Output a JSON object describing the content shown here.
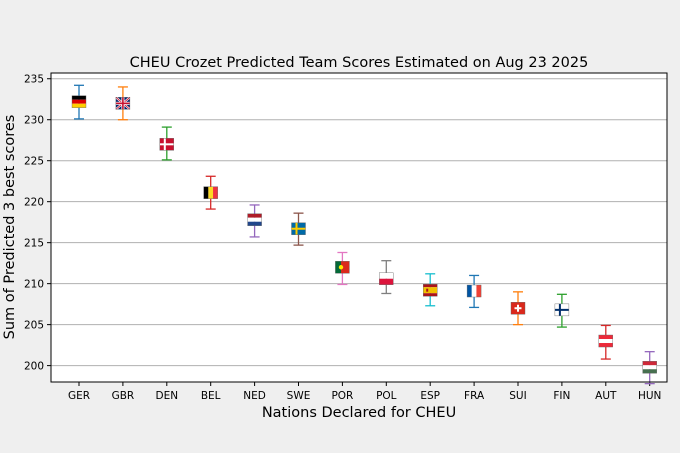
{
  "chart_data": {
    "type": "box",
    "title": "CHEU Crozet Predicted Team Scores Estimated on Aug 23 2025",
    "xlabel": "Nations Declared for CHEU",
    "ylabel": "Sum of Predicted 3 best scores",
    "ylim": [
      198,
      235.7
    ],
    "yticks": [
      200,
      205,
      210,
      215,
      220,
      225,
      230,
      235
    ],
    "grid": "horizontal",
    "categories": [
      "GER",
      "GBR",
      "DEN",
      "BEL",
      "NED",
      "SWE",
      "POR",
      "POL",
      "ESP",
      "FRA",
      "SUI",
      "FIN",
      "AUT",
      "HUN"
    ],
    "series": [
      {
        "category": "GER",
        "min": 230.1,
        "median": 232.2,
        "max": 234.2,
        "color": "#1f77b4",
        "flag": "germany-flag"
      },
      {
        "category": "GBR",
        "min": 230.0,
        "median": 232.0,
        "max": 234.0,
        "color": "#ff7f0e",
        "flag": "united-kingdom-flag"
      },
      {
        "category": "DEN",
        "min": 225.1,
        "median": 227.0,
        "max": 229.1,
        "color": "#2ca02c",
        "flag": "denmark-flag"
      },
      {
        "category": "BEL",
        "min": 219.1,
        "median": 221.1,
        "max": 223.1,
        "color": "#d62728",
        "flag": "belgium-flag"
      },
      {
        "category": "NED",
        "min": 215.7,
        "median": 217.8,
        "max": 219.6,
        "color": "#9467bd",
        "flag": "netherlands-flag"
      },
      {
        "category": "SWE",
        "min": 214.7,
        "median": 216.7,
        "max": 218.6,
        "color": "#8c564b",
        "flag": "sweden-flag"
      },
      {
        "category": "POR",
        "min": 209.9,
        "median": 212.0,
        "max": 213.8,
        "color": "#e377c2",
        "flag": "portugal-flag"
      },
      {
        "category": "POL",
        "min": 208.8,
        "median": 210.6,
        "max": 212.8,
        "color": "#7f7f7f",
        "flag": "poland-flag"
      },
      {
        "category": "ESP",
        "min": 207.3,
        "median": 209.2,
        "max": 211.2,
        "color": "#17becf",
        "flag": "spain-flag"
      },
      {
        "category": "FRA",
        "min": 207.1,
        "median": 209.1,
        "max": 211.0,
        "color": "#1f77b4",
        "flag": "france-flag"
      },
      {
        "category": "SUI",
        "min": 205.0,
        "median": 207.0,
        "max": 209.0,
        "color": "#ff7f0e",
        "flag": "switzerland-flag"
      },
      {
        "category": "FIN",
        "min": 204.7,
        "median": 206.8,
        "max": 208.7,
        "color": "#2ca02c",
        "flag": "finland-flag"
      },
      {
        "category": "AUT",
        "min": 200.8,
        "median": 203.0,
        "max": 204.9,
        "color": "#d62728",
        "flag": "austria-flag"
      },
      {
        "category": "HUN",
        "min": 197.8,
        "median": 199.8,
        "max": 201.7,
        "color": "#9467bd",
        "flag": "hungary-flag"
      }
    ]
  }
}
